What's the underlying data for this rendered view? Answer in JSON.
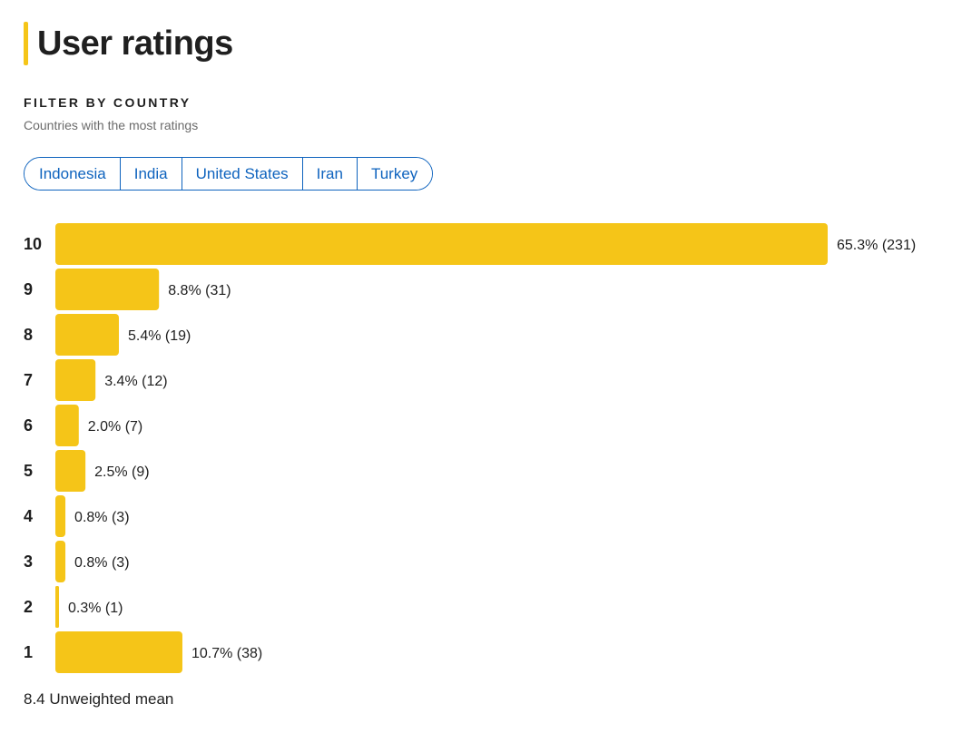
{
  "header": {
    "title": "User ratings"
  },
  "filter": {
    "heading": "FILTER BY COUNTRY",
    "subtitle": "Countries with the most ratings",
    "countries": [
      "Indonesia",
      "India",
      "United States",
      "Iran",
      "Turkey"
    ]
  },
  "chart_data": {
    "type": "bar",
    "orientation": "horizontal",
    "categories": [
      "10",
      "9",
      "8",
      "7",
      "6",
      "5",
      "4",
      "3",
      "2",
      "1"
    ],
    "values": [
      231,
      31,
      19,
      12,
      7,
      9,
      3,
      3,
      1,
      38
    ],
    "labels": [
      "65.3% (231)",
      "8.8% (31)",
      "5.4% (19)",
      "3.4% (12)",
      "2.0% (7)",
      "2.5% (9)",
      "0.8% (3)",
      "0.8% (3)",
      "0.3% (1)",
      "10.7% (38)"
    ],
    "color": "#f5c518",
    "xlabel": "",
    "ylabel": ""
  },
  "summary": {
    "mean_text": "8.4 Unweighted mean"
  }
}
